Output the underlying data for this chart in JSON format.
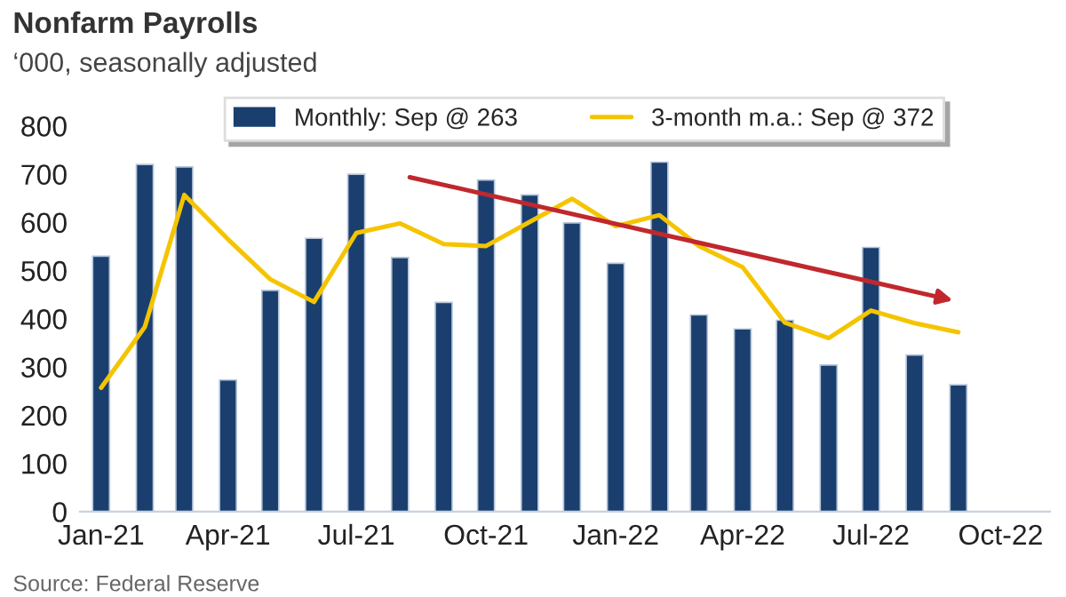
{
  "chart_data": {
    "type": "bar",
    "title": "Nonfarm Payrolls",
    "subtitle": "‘000, seasonally adjusted",
    "annotations": [
      "Source: Federal Reserve"
    ],
    "x": [
      "2021-01",
      "2021-02",
      "2021-03",
      "2021-04",
      "2021-05",
      "2021-06",
      "2021-07",
      "2021-08",
      "2021-09",
      "2021-10",
      "2021-11",
      "2021-12",
      "2022-01",
      "2022-02",
      "2022-03",
      "2022-04",
      "2022-05",
      "2022-06",
      "2022-07",
      "2022-08",
      "2022-09"
    ],
    "series": [
      {
        "name": "Monthly: Sep @ 263",
        "color": "#1a3f6f",
        "values": [
          530,
          720,
          715,
          273,
          459,
          567,
          700,
          527,
          434,
          688,
          657,
          599,
          515,
          725,
          408,
          379,
          397,
          304,
          548,
          325,
          263
        ]
      },
      {
        "name": "3-month m.a.: Sep @ 372",
        "type": "line",
        "color": "#f5c400",
        "values": [
          257,
          383,
          657,
          565,
          482,
          435,
          578,
          598,
          555,
          551,
          601,
          649,
          592,
          615,
          551,
          507,
          392,
          360,
          417,
          391,
          372
        ]
      }
    ],
    "xlim": [
      "2020-12-17",
      "2022-11-05"
    ],
    "xticks": [
      {
        "value": "2021-01",
        "label": "Jan-21"
      },
      {
        "value": "2021-04",
        "label": "Apr-21"
      },
      {
        "value": "2021-07",
        "label": "Jul-21"
      },
      {
        "value": "2021-10",
        "label": "Oct-21"
      },
      {
        "value": "2022-01",
        "label": "Jan-22"
      },
      {
        "value": "2022-04",
        "label": "Apr-22"
      },
      {
        "value": "2022-07",
        "label": "Jul-22"
      },
      {
        "value": "2022-10",
        "label": "Oct-22"
      }
    ],
    "ylim": [
      0,
      800
    ],
    "yticks": [
      0,
      100,
      200,
      300,
      400,
      500,
      600,
      700,
      800
    ],
    "legend": "top",
    "grid": false,
    "marker": "none",
    "line_style": "solid"
  }
}
